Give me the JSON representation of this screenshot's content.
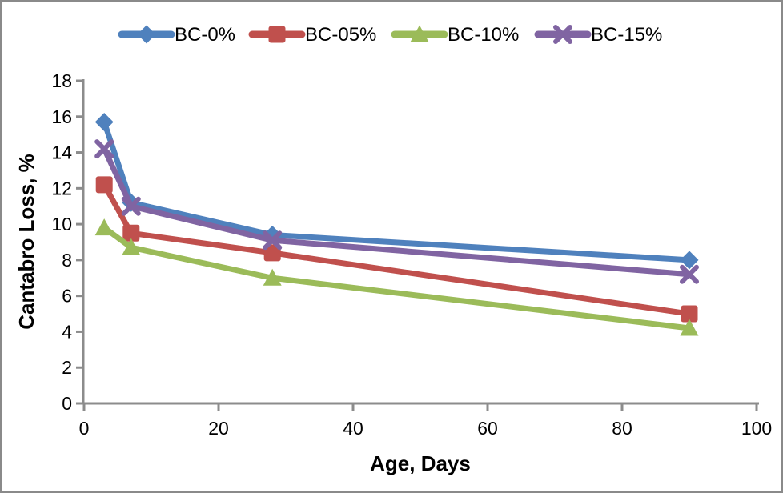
{
  "chart_data": {
    "type": "line",
    "xlabel": "Age, Days",
    "ylabel": "Cantabro Loss, %",
    "x": [
      3,
      7,
      28,
      90
    ],
    "series": [
      {
        "name": "BC-0%",
        "color": "#4F81BD",
        "marker": "diamond",
        "values": [
          15.7,
          11.2,
          9.4,
          8.0
        ]
      },
      {
        "name": "BC-05%",
        "color": "#C0504D",
        "marker": "square",
        "values": [
          12.2,
          9.5,
          8.4,
          5.0
        ]
      },
      {
        "name": "BC-10%",
        "color": "#9BBB59",
        "marker": "triangle",
        "values": [
          9.8,
          8.7,
          7.0,
          4.2
        ]
      },
      {
        "name": "BC-15%",
        "color": "#8064A2",
        "marker": "x",
        "values": [
          14.2,
          11.0,
          9.1,
          7.2
        ]
      }
    ],
    "x_axis": {
      "min": 0,
      "max": 100,
      "step": 20,
      "ticks": [
        "0",
        "20",
        "40",
        "60",
        "80",
        "100"
      ]
    },
    "y_axis": {
      "min": 0,
      "max": 18,
      "step": 2,
      "ticks": [
        "0",
        "2",
        "4",
        "6",
        "8",
        "10",
        "12",
        "14",
        "16",
        "18"
      ]
    },
    "legend_position": "top",
    "grid": false,
    "colors": {
      "axis": "#8C8C8C",
      "frame_border": "#8A8A8A",
      "background": "#FFFFFF",
      "text": "#000000"
    }
  }
}
